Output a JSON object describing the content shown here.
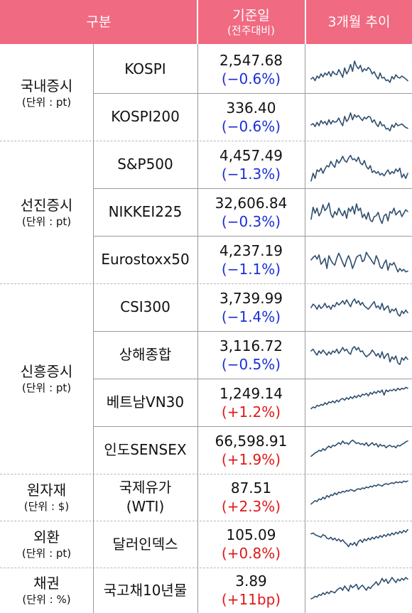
{
  "header": {
    "category": "구분",
    "base_date": "기준일",
    "base_date_sub": "(전주대비)",
    "trend": "3개월 추이"
  },
  "colors": {
    "header_bg": "#f06a82",
    "negative": "#1a2fd6",
    "positive": "#e01818",
    "sparkline": "#2f4e6e"
  },
  "groups": [
    {
      "name": "국내증시",
      "unit": "(단위 : pt)"
    },
    {
      "name": "선진증시",
      "unit": "(단위 : pt)"
    },
    {
      "name": "신흥증시",
      "unit": "(단위 : pt)"
    },
    {
      "name": "원자재",
      "unit": "(단위 : $)"
    },
    {
      "name": "외환",
      "unit": "(단위 : pt)"
    },
    {
      "name": "채권",
      "unit": "(단위 : %)"
    }
  ],
  "rows": [
    {
      "name": "KOSPI",
      "value": "2,547.68",
      "change": "(−0.6%)",
      "direction": "negative",
      "trend": [
        62,
        58,
        66,
        55,
        60,
        50,
        57,
        48,
        53,
        45,
        56,
        44,
        50,
        52,
        40,
        48,
        58,
        36,
        50,
        42,
        28,
        44,
        20,
        32,
        38,
        30,
        45,
        38,
        42,
        35,
        40,
        50,
        45,
        55,
        62,
        48,
        60,
        58,
        66,
        64,
        70,
        56,
        62,
        52,
        58,
        60,
        55,
        58,
        62,
        66
      ]
    },
    {
      "name": "KOSPI200",
      "value": "336.40",
      "change": "(−0.6%)",
      "direction": "negative",
      "trend": [
        58,
        55,
        62,
        52,
        60,
        48,
        55,
        50,
        58,
        46,
        56,
        48,
        52,
        50,
        42,
        52,
        60,
        38,
        50,
        44,
        30,
        46,
        34,
        40,
        36,
        42,
        48,
        40,
        44,
        38,
        40,
        52,
        46,
        56,
        62,
        50,
        60,
        58,
        68,
        66,
        72,
        58,
        64,
        54,
        60,
        58,
        56,
        60,
        64,
        66
      ]
    },
    {
      "name": "S&P500",
      "value": "4,457.49",
      "change": "(−1.3%)",
      "direction": "negative",
      "trend": [
        78,
        60,
        72,
        52,
        56,
        48,
        60,
        50,
        42,
        45,
        32,
        40,
        46,
        28,
        36,
        30,
        20,
        30,
        34,
        24,
        18,
        28,
        26,
        32,
        22,
        36,
        40,
        30,
        44,
        50,
        42,
        58,
        54,
        60,
        56,
        64,
        60,
        66,
        58,
        52,
        62,
        56,
        60,
        50,
        56,
        48,
        70,
        62,
        72,
        60
      ]
    },
    {
      "name": "NIKKEI225",
      "value": "32,606.84",
      "change": "(−0.3%)",
      "direction": "negative",
      "trend": [
        56,
        28,
        42,
        30,
        48,
        40,
        22,
        36,
        30,
        18,
        44,
        52,
        38,
        46,
        30,
        40,
        48,
        36,
        54,
        30,
        38,
        26,
        44,
        20,
        36,
        30,
        52,
        44,
        56,
        40,
        58,
        62,
        50,
        48,
        40,
        56,
        66,
        48,
        44,
        60,
        38,
        42,
        30,
        46,
        40,
        36,
        50,
        42,
        34,
        38
      ]
    },
    {
      "name": "Eurostoxx50",
      "value": "4,237.19",
      "change": "(−1.1%)",
      "direction": "negative",
      "trend": [
        40,
        34,
        30,
        38,
        28,
        50,
        44,
        36,
        60,
        30,
        40,
        48,
        52,
        36,
        24,
        34,
        46,
        56,
        40,
        30,
        42,
        60,
        48,
        34,
        30,
        28,
        44,
        40,
        22,
        30,
        36,
        44,
        50,
        30,
        40,
        56,
        60,
        48,
        40,
        64,
        48,
        52,
        46,
        56,
        68,
        60,
        66,
        62,
        68,
        66
      ]
    },
    {
      "name": "CSI300",
      "value": "3,739.99",
      "change": "(−1.4%)",
      "direction": "negative",
      "trend": [
        40,
        32,
        36,
        44,
        34,
        42,
        38,
        30,
        40,
        36,
        44,
        34,
        38,
        28,
        34,
        30,
        24,
        32,
        22,
        30,
        38,
        26,
        20,
        30,
        24,
        34,
        28,
        36,
        40,
        44,
        38,
        32,
        26,
        40,
        36,
        44,
        30,
        46,
        40,
        36,
        52,
        44,
        48,
        42,
        56,
        60,
        48,
        54,
        46,
        52
      ]
    },
    {
      "name": "상해종합",
      "value": "3,116.72",
      "change": "(−0.5%)",
      "direction": "negative",
      "trend": [
        30,
        26,
        34,
        40,
        30,
        36,
        28,
        34,
        40,
        32,
        38,
        30,
        34,
        26,
        36,
        30,
        22,
        30,
        26,
        34,
        38,
        24,
        20,
        28,
        22,
        32,
        30,
        38,
        44,
        40,
        36,
        28,
        34,
        42,
        36,
        46,
        32,
        48,
        40,
        36,
        56,
        44,
        50,
        42,
        58,
        62,
        46,
        52,
        44,
        50
      ]
    },
    {
      "name": "베트남VN30",
      "value": "1,249.14",
      "change": "(+1.2%)",
      "direction": "positive",
      "trend": [
        54,
        50,
        52,
        46,
        48,
        44,
        46,
        40,
        44,
        38,
        40,
        36,
        40,
        34,
        38,
        32,
        30,
        34,
        28,
        32,
        26,
        30,
        24,
        28,
        22,
        26,
        20,
        22,
        18,
        24,
        16,
        20,
        14,
        18,
        12,
        16,
        10,
        22,
        10,
        14,
        10,
        12,
        8,
        12,
        6,
        10,
        6,
        8,
        4,
        6
      ]
    },
    {
      "name": "인도SENSEX",
      "value": "66,598.91",
      "change": "(+1.9%)",
      "direction": "positive",
      "trend": [
        54,
        50,
        46,
        44,
        40,
        42,
        36,
        40,
        34,
        30,
        34,
        28,
        30,
        26,
        22,
        26,
        18,
        24,
        22,
        26,
        20,
        16,
        20,
        24,
        22,
        26,
        24,
        28,
        22,
        30,
        26,
        22,
        28,
        24,
        32,
        26,
        30,
        28,
        34,
        30,
        28,
        32,
        30,
        34,
        28,
        30,
        26,
        24,
        20,
        18
      ]
    },
    {
      "name": "국제유가\n(WTI)",
      "value": "87.51",
      "change": "(+2.3%)",
      "direction": "positive",
      "trend": [
        56,
        52,
        48,
        50,
        44,
        46,
        40,
        44,
        36,
        40,
        34,
        36,
        30,
        34,
        28,
        30,
        26,
        28,
        24,
        26,
        22,
        24,
        26,
        22,
        20,
        22,
        18,
        20,
        16,
        18,
        14,
        16,
        12,
        14,
        10,
        12,
        14,
        10,
        8,
        10,
        8,
        6,
        8,
        4,
        6,
        4,
        6,
        2,
        4,
        2
      ]
    },
    {
      "name": "달러인덱스",
      "value": "105.09",
      "change": "(+0.8%)",
      "direction": "positive",
      "trend": [
        16,
        14,
        18,
        20,
        22,
        24,
        18,
        20,
        26,
        28,
        24,
        30,
        26,
        32,
        28,
        34,
        30,
        36,
        40,
        46,
        38,
        42,
        36,
        44,
        34,
        30,
        36,
        28,
        32,
        26,
        30,
        24,
        28,
        22,
        26,
        20,
        24,
        18,
        22,
        16,
        20,
        14,
        18,
        12,
        16,
        10,
        14,
        8,
        12,
        6
      ]
    },
    {
      "name": "국고채10년물",
      "value": "3.89",
      "change": "(+11bp)",
      "direction": "positive",
      "trend": [
        60,
        58,
        54,
        56,
        50,
        52,
        46,
        50,
        44,
        48,
        42,
        44,
        46,
        40,
        36,
        34,
        40,
        30,
        36,
        42,
        28,
        34,
        30,
        26,
        38,
        32,
        28,
        34,
        40,
        32,
        36,
        30,
        26,
        20,
        28,
        22,
        12,
        20,
        14,
        24,
        18,
        10,
        16,
        22,
        14,
        18,
        12,
        16,
        10,
        14
      ]
    }
  ]
}
